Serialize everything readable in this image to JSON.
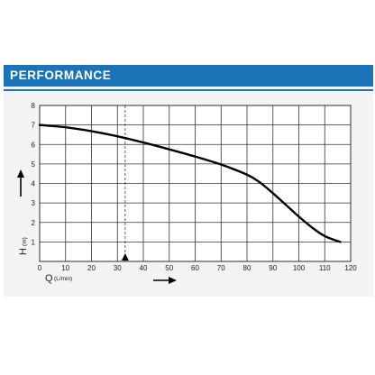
{
  "header": {
    "title": "PERFORMANCE"
  },
  "chart_data": {
    "type": "line",
    "title": "PERFORMANCE",
    "xlabel": "Q",
    "xunit": "(L/min)",
    "ylabel": "H",
    "yunit": "(m)",
    "xlim": [
      0,
      120
    ],
    "ylim": [
      0,
      8
    ],
    "xticks": [
      0,
      10,
      20,
      30,
      40,
      50,
      60,
      70,
      80,
      90,
      100,
      110,
      120
    ],
    "yticks": [
      1,
      2,
      3,
      4,
      5,
      6,
      7,
      8
    ],
    "grid": true,
    "marker_x": 33,
    "series": [
      {
        "x": [
          0,
          10,
          20,
          30,
          40,
          50,
          60,
          70,
          80,
          85,
          90,
          95,
          100,
          105,
          110,
          116
        ],
        "y": [
          7.0,
          6.88,
          6.68,
          6.42,
          6.1,
          5.75,
          5.38,
          4.97,
          4.45,
          4.05,
          3.5,
          2.9,
          2.3,
          1.75,
          1.3,
          1.0
        ]
      }
    ]
  }
}
